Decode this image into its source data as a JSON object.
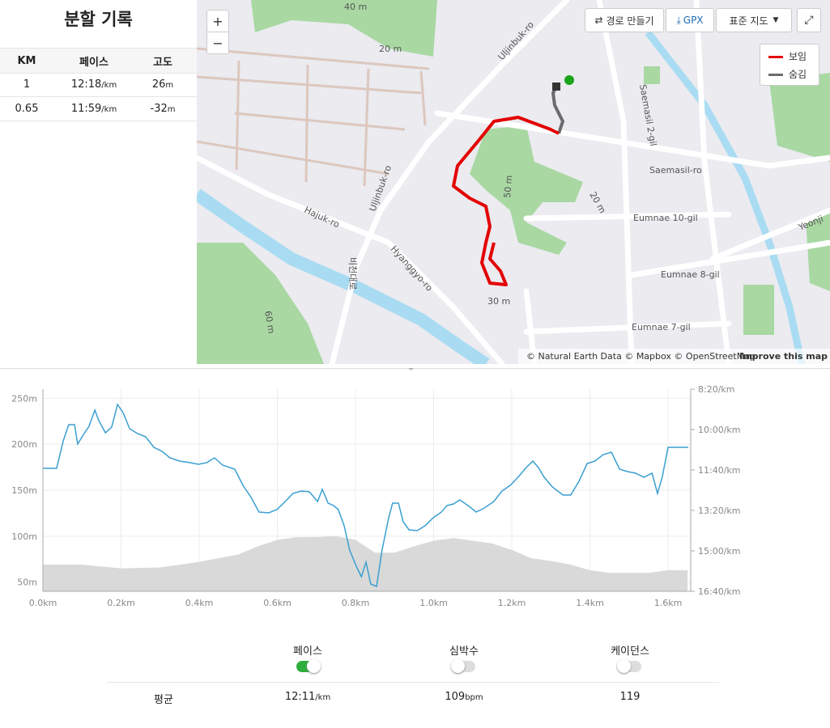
{
  "splits": {
    "title": "분할 기록",
    "headers": [
      "KM",
      "페이스",
      "고도"
    ],
    "rows": [
      {
        "km": "1",
        "pace": "12:18",
        "pace_unit": "/km",
        "elev": "26",
        "elev_unit": "m"
      },
      {
        "km": "0.65",
        "pace": "11:59",
        "pace_unit": "/km",
        "elev": "-32",
        "elev_unit": "m"
      }
    ]
  },
  "map": {
    "controls": {
      "zoom_in": "+",
      "zoom_out": "−",
      "route": "경로 만들기",
      "gpx": "GPX",
      "style": "표준 지도"
    },
    "legend": [
      "보임",
      "숨김"
    ],
    "labels": [
      "40 m",
      "20 m",
      "Uljinbuk-ro",
      "Saemasil 2-gil",
      "Saemasil-ro",
      "Eumnae 10-gil",
      "Eumnae 8-gil",
      "Eumnae 7-gil",
      "Hajuk-ro",
      "Hyanggyo-ro",
      "Yeonji",
      "Uljinbuk-ro",
      "30 m",
      "50 m",
      "60 m",
      "비천대로",
      "20 m"
    ],
    "attribution": "© Natural Earth Data © Mapbox © OpenStreetMap",
    "improve": "Improve this map"
  },
  "chart_data": {
    "type": "line",
    "xlim": [
      0,
      1.658
    ],
    "ylim": [
      40,
      260
    ],
    "y2lim": [
      1000,
      500
    ],
    "grid": true,
    "xticks": [
      {
        "value": 0,
        "label": "0.0km"
      },
      {
        "value": 0.2,
        "label": "0.2km"
      },
      {
        "value": 0.4,
        "label": "0.4km"
      },
      {
        "value": 0.6,
        "label": "0.6km"
      },
      {
        "value": 0.8,
        "label": "0.8km"
      },
      {
        "value": 1.0,
        "label": "1.0km"
      },
      {
        "value": 1.2,
        "label": "1.2km"
      },
      {
        "value": 1.4,
        "label": "1.4km"
      },
      {
        "value": 1.6,
        "label": "1.6km"
      }
    ],
    "yticks": [
      {
        "value": 50,
        "label": "50m"
      },
      {
        "value": 100,
        "label": "100m"
      },
      {
        "value": 150,
        "label": "150m"
      },
      {
        "value": 200,
        "label": "200m"
      },
      {
        "value": 250,
        "label": "250m"
      }
    ],
    "y2ticks": [
      {
        "value": 500,
        "label": "8:20/km"
      },
      {
        "value": 600,
        "label": "10:00/km"
      },
      {
        "value": 700,
        "label": "11:40/km"
      },
      {
        "value": 800,
        "label": "13:20/km"
      },
      {
        "value": 900,
        "label": "15:00/km"
      },
      {
        "value": 1000,
        "label": "16:40/km"
      }
    ],
    "series": [
      {
        "kind": "area",
        "color": "#d9d9d9",
        "x": [
          0,
          0.1,
          0.2,
          0.3,
          0.4,
          0.5,
          0.55,
          0.6,
          0.65,
          0.7,
          0.75,
          0.8,
          0.85,
          0.9,
          0.95,
          1.0,
          1.05,
          1.1,
          1.15,
          1.2,
          1.25,
          1.3,
          1.35,
          1.4,
          1.45,
          1.5,
          1.55,
          1.6,
          1.65
        ],
        "values": [
          69,
          69,
          65,
          66,
          72,
          80,
          89,
          96,
          99,
          99,
          100,
          96,
          82,
          82,
          89,
          95,
          98,
          95,
          92,
          85,
          76,
          73,
          69,
          63,
          60,
          60,
          60,
          63,
          63
        ]
      },
      {
        "kind": "line",
        "axis": "y2",
        "color": "#3a9fd0",
        "x": [
          0,
          0.035,
          0.052,
          0.066,
          0.081,
          0.089,
          0.104,
          0.118,
          0.133,
          0.143,
          0.16,
          0.176,
          0.191,
          0.205,
          0.222,
          0.242,
          0.263,
          0.284,
          0.305,
          0.325,
          0.35,
          0.377,
          0.398,
          0.419,
          0.439,
          0.46,
          0.491,
          0.512,
          0.533,
          0.553,
          0.578,
          0.599,
          0.62,
          0.64,
          0.661,
          0.682,
          0.703,
          0.715,
          0.73,
          0.744,
          0.756,
          0.771,
          0.785,
          0.802,
          0.815,
          0.827,
          0.839,
          0.854,
          0.868,
          0.885,
          0.895,
          0.91,
          0.922,
          0.937,
          0.958,
          0.978,
          0.999,
          1.02,
          1.034,
          1.051,
          1.067,
          1.088,
          1.109,
          1.13,
          1.154,
          1.175,
          1.196,
          1.216,
          1.237,
          1.254,
          1.268,
          1.283,
          1.304,
          1.331,
          1.351,
          1.372,
          1.393,
          1.413,
          1.434,
          1.455,
          1.476,
          1.496,
          1.517,
          1.538,
          1.559,
          1.573,
          1.585,
          1.6,
          1.652
        ],
        "values": [
          696,
          696,
          628,
          588,
          588,
          636,
          612,
          592,
          552,
          578,
          608,
          594,
          538,
          558,
          598,
          610,
          618,
          644,
          654,
          670,
          678,
          682,
          686,
          682,
          670,
          688,
          698,
          738,
          768,
          804,
          806,
          798,
          778,
          758,
          752,
          754,
          778,
          748,
          782,
          788,
          798,
          838,
          898,
          938,
          964,
          928,
          982,
          988,
          898,
          818,
          782,
          782,
          828,
          848,
          850,
          838,
          818,
          804,
          788,
          784,
          774,
          788,
          804,
          794,
          778,
          752,
          738,
          718,
          694,
          678,
          694,
          718,
          742,
          762,
          762,
          728,
          684,
          678,
          662,
          656,
          698,
          704,
          708,
          718,
          708,
          758,
          718,
          644,
          644
        ]
      }
    ]
  },
  "stats": {
    "toggles": [
      {
        "label": "페이스",
        "on": true
      },
      {
        "label": "심박수",
        "on": false
      },
      {
        "label": "케이던스",
        "on": false
      }
    ],
    "avg_label": "평균",
    "avg": [
      {
        "value": "12:11",
        "unit": "/km"
      },
      {
        "value": "109",
        "unit": "bpm"
      },
      {
        "value": "119",
        "unit": ""
      }
    ]
  }
}
